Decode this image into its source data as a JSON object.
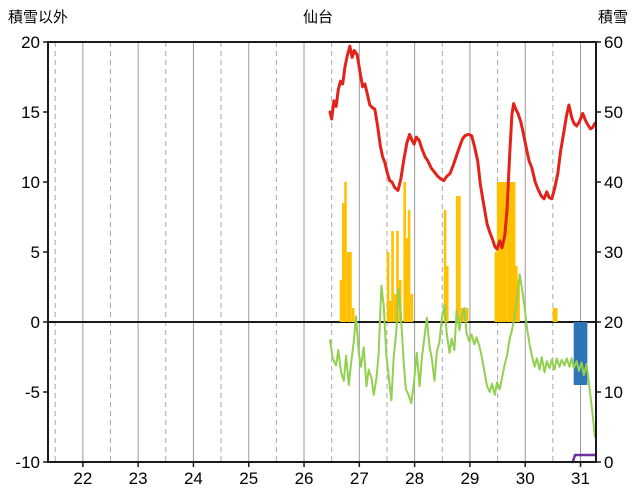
{
  "page": {
    "title_left": "積雪以外",
    "title_center": "仙台",
    "title_right": "積雪"
  },
  "chart_data": {
    "type": "line",
    "title": "仙台",
    "left_axis": {
      "label": "積雪以外",
      "min": -10,
      "max": 20,
      "ticks": [
        20,
        15,
        10,
        5,
        0,
        -5,
        -10
      ]
    },
    "right_axis": {
      "label": "積雪",
      "min": 0,
      "max": 60,
      "ticks": [
        60,
        50,
        40,
        30,
        20,
        10,
        0
      ]
    },
    "x_axis": {
      "min": 21.37,
      "max": 31.28,
      "ticks": [
        22,
        23,
        24,
        25,
        26,
        27,
        28,
        29,
        30,
        31
      ]
    },
    "grid": {
      "vertical_solid_interval": 1,
      "vertical_dashed_offset": 0.5,
      "horizontal": false,
      "zero_line": true
    },
    "colors": {
      "red_line": "#e2231a",
      "green_line": "#92d050",
      "orange_bars": "#ffc000",
      "blue_bars": "#2e75b6",
      "purple_line": "#7030a0",
      "grid_solid": "#9a9a9a",
      "grid_dashed": "#a8a8a8",
      "frame": "#1a1a1a",
      "text": "#000000"
    },
    "series": [
      {
        "name": "orange_bars",
        "type": "bar",
        "axis": "left",
        "color": "#ffc000",
        "bar_width": 2.6,
        "points": [
          [
            26.67,
            3
          ],
          [
            26.71,
            8.5
          ],
          [
            26.75,
            10
          ],
          [
            26.8,
            5
          ],
          [
            26.84,
            5
          ],
          [
            26.89,
            1
          ],
          [
            27.52,
            5
          ],
          [
            27.56,
            1.5
          ],
          [
            27.6,
            6.5
          ],
          [
            27.65,
            2
          ],
          [
            27.69,
            6.5
          ],
          [
            27.74,
            3
          ],
          [
            27.82,
            10
          ],
          [
            27.86,
            6
          ],
          [
            27.9,
            8
          ],
          [
            27.95,
            2
          ],
          [
            28.55,
            8
          ],
          [
            28.59,
            4
          ],
          [
            28.77,
            9
          ],
          [
            28.81,
            9
          ],
          [
            28.86,
            1
          ],
          [
            28.9,
            1
          ],
          [
            28.95,
            1
          ],
          [
            29.47,
            5
          ],
          [
            29.51,
            10
          ],
          [
            29.55,
            10
          ],
          [
            29.59,
            10
          ],
          [
            29.63,
            10
          ],
          [
            29.68,
            10
          ],
          [
            29.72,
            10
          ],
          [
            29.76,
            10
          ],
          [
            29.8,
            10
          ],
          [
            29.84,
            4
          ],
          [
            29.88,
            3
          ],
          [
            30.52,
            1
          ],
          [
            30.56,
            1
          ]
        ]
      },
      {
        "name": "blue_bars",
        "type": "bar",
        "axis": "left",
        "color": "#2e75b6",
        "bar_width": 2.6,
        "points": [
          [
            30.9,
            -4.5
          ],
          [
            30.94,
            -4.5
          ],
          [
            30.98,
            -4.5
          ],
          [
            31.02,
            -4.5
          ],
          [
            31.06,
            -4.5
          ],
          [
            31.1,
            -4.5
          ]
        ]
      },
      {
        "name": "purple_line",
        "type": "line",
        "axis": "right",
        "color": "#7030a0",
        "width": 2.5,
        "points": [
          [
            30.86,
            0
          ],
          [
            30.9,
            1
          ],
          [
            31.26,
            1
          ]
        ]
      },
      {
        "name": "green_line",
        "type": "line",
        "axis": "left",
        "color": "#92d050",
        "width": 2,
        "points": [
          [
            26.47,
            -1.3
          ],
          [
            26.52,
            -2.6
          ],
          [
            26.58,
            -3.1
          ],
          [
            26.62,
            -2.0
          ],
          [
            26.67,
            -3.6
          ],
          [
            26.72,
            -4.2
          ],
          [
            26.76,
            -2.4
          ],
          [
            26.81,
            -4.5
          ],
          [
            26.85,
            -3.0
          ],
          [
            26.9,
            -1.4
          ],
          [
            26.94,
            0.4
          ],
          [
            26.99,
            -2.2
          ],
          [
            27.03,
            -3.2
          ],
          [
            27.08,
            -1.8
          ],
          [
            27.13,
            -4.6
          ],
          [
            27.17,
            -3.4
          ],
          [
            27.22,
            -4.0
          ],
          [
            27.26,
            -5.2
          ],
          [
            27.31,
            -4.0
          ],
          [
            27.35,
            -2.2
          ],
          [
            27.4,
            2.6
          ],
          [
            27.44,
            1.2
          ],
          [
            27.49,
            -2.4
          ],
          [
            27.53,
            -3.8
          ],
          [
            27.58,
            -5.6
          ],
          [
            27.62,
            -2.6
          ],
          [
            27.67,
            -0.6
          ],
          [
            27.71,
            2.4
          ],
          [
            27.75,
            0.6
          ],
          [
            27.8,
            -2.8
          ],
          [
            27.84,
            -4.8
          ],
          [
            27.89,
            -5.2
          ],
          [
            27.94,
            -5.8
          ],
          [
            27.99,
            -4.2
          ],
          [
            28.04,
            -2.2
          ],
          [
            28.09,
            -4.6
          ],
          [
            28.13,
            -2.6
          ],
          [
            28.18,
            -1.0
          ],
          [
            28.22,
            0.3
          ],
          [
            28.27,
            -1.8
          ],
          [
            28.31,
            -2.6
          ],
          [
            28.36,
            -4.2
          ],
          [
            28.4,
            -2.2
          ],
          [
            28.45,
            -1.4
          ],
          [
            28.49,
            0.2
          ],
          [
            28.54,
            1.2
          ],
          [
            28.58,
            -0.8
          ],
          [
            28.63,
            -2.2
          ],
          [
            28.67,
            -1.2
          ],
          [
            28.72,
            -2.0
          ],
          [
            28.76,
            0.8
          ],
          [
            28.81,
            -0.6
          ],
          [
            28.85,
            0.4
          ],
          [
            28.9,
            1.0
          ],
          [
            28.94,
            -0.8
          ],
          [
            28.99,
            -1.4
          ],
          [
            29.03,
            -0.9
          ],
          [
            29.08,
            -1.6
          ],
          [
            29.12,
            -1.1
          ],
          [
            29.17,
            -1.7
          ],
          [
            29.22,
            -2.6
          ],
          [
            29.26,
            -3.5
          ],
          [
            29.31,
            -4.6
          ],
          [
            29.36,
            -5.0
          ],
          [
            29.4,
            -4.4
          ],
          [
            29.45,
            -5.2
          ],
          [
            29.49,
            -4.3
          ],
          [
            29.54,
            -4.8
          ],
          [
            29.58,
            -4.0
          ],
          [
            29.63,
            -3.0
          ],
          [
            29.67,
            -2.4
          ],
          [
            29.72,
            -1.2
          ],
          [
            29.76,
            -0.6
          ],
          [
            29.81,
            0.4
          ],
          [
            29.85,
            1.6
          ],
          [
            29.9,
            3.4
          ],
          [
            29.94,
            2.4
          ],
          [
            29.99,
            1.0
          ],
          [
            30.03,
            -0.4
          ],
          [
            30.08,
            -1.6
          ],
          [
            30.12,
            -2.4
          ],
          [
            30.17,
            -3.2
          ],
          [
            30.21,
            -2.6
          ],
          [
            30.26,
            -3.4
          ],
          [
            30.3,
            -2.5
          ],
          [
            30.35,
            -3.6
          ],
          [
            30.39,
            -2.8
          ],
          [
            30.44,
            -3.3
          ],
          [
            30.48,
            -2.7
          ],
          [
            30.53,
            -3.4
          ],
          [
            30.57,
            -2.6
          ],
          [
            30.62,
            -3.2
          ],
          [
            30.66,
            -2.7
          ],
          [
            30.71,
            -3.1
          ],
          [
            30.75,
            -2.6
          ],
          [
            30.8,
            -3.2
          ],
          [
            30.84,
            -2.6
          ],
          [
            30.88,
            -3.3
          ],
          [
            30.93,
            -2.8
          ],
          [
            30.97,
            -3.5
          ],
          [
            31.02,
            -2.9
          ],
          [
            31.06,
            -3.8
          ],
          [
            31.11,
            -3.0
          ],
          [
            31.15,
            -4.3
          ],
          [
            31.19,
            -5.6
          ],
          [
            31.23,
            -7.0
          ],
          [
            31.26,
            -8.2
          ]
        ]
      },
      {
        "name": "red_line",
        "type": "line",
        "axis": "left",
        "color": "#e2231a",
        "width": 3,
        "points": [
          [
            26.47,
            15.0
          ],
          [
            26.5,
            14.5
          ],
          [
            26.54,
            15.8
          ],
          [
            26.58,
            15.4
          ],
          [
            26.62,
            16.6
          ],
          [
            26.66,
            17.2
          ],
          [
            26.7,
            17.0
          ],
          [
            26.74,
            18.2
          ],
          [
            26.78,
            19.0
          ],
          [
            26.83,
            19.7
          ],
          [
            26.87,
            18.9
          ],
          [
            26.91,
            19.4
          ],
          [
            26.96,
            19.1
          ],
          [
            27.01,
            17.9
          ],
          [
            27.06,
            16.8
          ],
          [
            27.1,
            17.0
          ],
          [
            27.15,
            16.2
          ],
          [
            27.19,
            15.5
          ],
          [
            27.24,
            15.3
          ],
          [
            27.28,
            15.2
          ],
          [
            27.33,
            14.0
          ],
          [
            27.38,
            12.6
          ],
          [
            27.42,
            11.8
          ],
          [
            27.46,
            11.4
          ],
          [
            27.51,
            10.6
          ],
          [
            27.55,
            10.1
          ],
          [
            27.59,
            10.0
          ],
          [
            27.64,
            9.6
          ],
          [
            27.7,
            9.4
          ],
          [
            27.75,
            10.2
          ],
          [
            27.8,
            11.5
          ],
          [
            27.86,
            12.8
          ],
          [
            27.91,
            13.4
          ],
          [
            27.95,
            13.0
          ],
          [
            27.99,
            12.7
          ],
          [
            28.03,
            13.2
          ],
          [
            28.08,
            13.0
          ],
          [
            28.13,
            12.4
          ],
          [
            28.19,
            11.8
          ],
          [
            28.24,
            11.5
          ],
          [
            28.3,
            11.0
          ],
          [
            28.36,
            10.7
          ],
          [
            28.42,
            10.4
          ],
          [
            28.48,
            10.2
          ],
          [
            28.53,
            10.1
          ],
          [
            28.58,
            10.4
          ],
          [
            28.64,
            10.6
          ],
          [
            28.7,
            11.2
          ],
          [
            28.76,
            11.9
          ],
          [
            28.82,
            12.6
          ],
          [
            28.87,
            13.1
          ],
          [
            28.91,
            13.3
          ],
          [
            28.97,
            13.4
          ],
          [
            29.03,
            13.3
          ],
          [
            29.08,
            12.6
          ],
          [
            29.14,
            11.5
          ],
          [
            29.19,
            9.8
          ],
          [
            29.25,
            8.4
          ],
          [
            29.31,
            7.0
          ],
          [
            29.36,
            6.4
          ],
          [
            29.41,
            5.9
          ],
          [
            29.45,
            5.4
          ],
          [
            29.49,
            5.2
          ],
          [
            29.54,
            5.8
          ],
          [
            29.58,
            5.3
          ],
          [
            29.63,
            6.2
          ],
          [
            29.67,
            8.0
          ],
          [
            29.72,
            12.0
          ],
          [
            29.76,
            14.8
          ],
          [
            29.79,
            15.6
          ],
          [
            29.83,
            15.2
          ],
          [
            29.87,
            14.9
          ],
          [
            29.92,
            14.3
          ],
          [
            29.97,
            13.4
          ],
          [
            30.01,
            12.6
          ],
          [
            30.07,
            11.5
          ],
          [
            30.12,
            11.0
          ],
          [
            30.18,
            10.0
          ],
          [
            30.23,
            9.5
          ],
          [
            30.29,
            9.0
          ],
          [
            30.34,
            8.8
          ],
          [
            30.39,
            9.3
          ],
          [
            30.43,
            8.9
          ],
          [
            30.48,
            8.8
          ],
          [
            30.53,
            9.5
          ],
          [
            30.59,
            10.6
          ],
          [
            30.64,
            12.2
          ],
          [
            30.7,
            13.6
          ],
          [
            30.75,
            14.8
          ],
          [
            30.79,
            15.5
          ],
          [
            30.84,
            14.6
          ],
          [
            30.88,
            14.2
          ],
          [
            30.93,
            14.0
          ],
          [
            30.98,
            14.3
          ],
          [
            31.04,
            14.9
          ],
          [
            31.09,
            14.4
          ],
          [
            31.13,
            14.1
          ],
          [
            31.18,
            13.8
          ],
          [
            31.22,
            13.9
          ],
          [
            31.26,
            14.2
          ]
        ]
      }
    ]
  }
}
